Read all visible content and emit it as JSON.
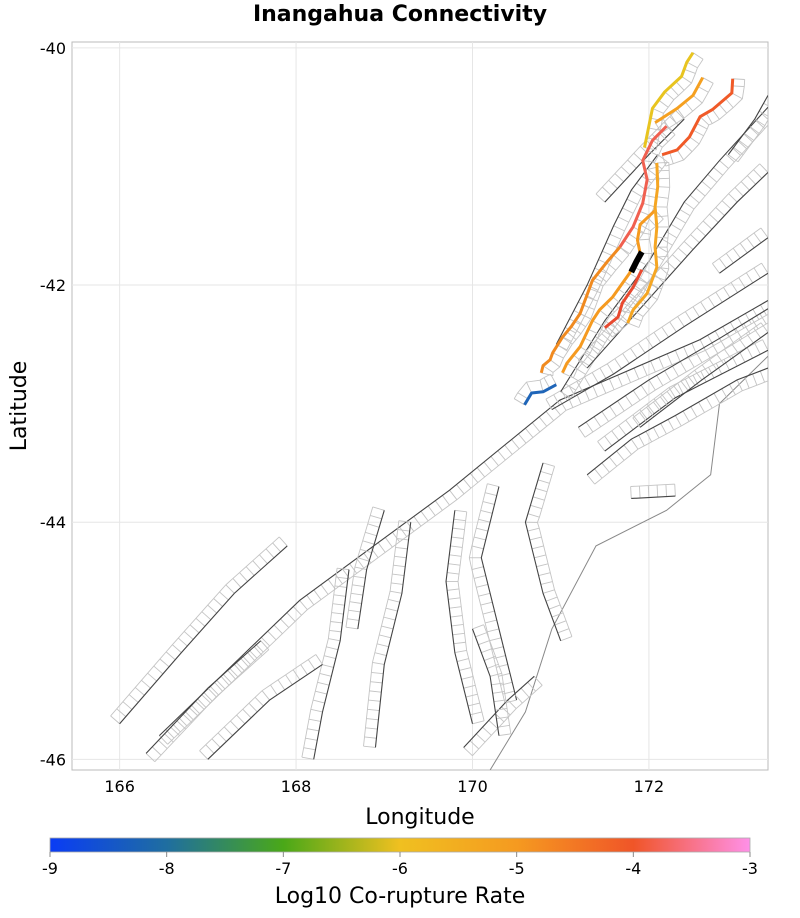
{
  "chart_data": {
    "type": "map",
    "title": "Inangahua Connectivity",
    "xlabel": "Longitude",
    "ylabel": "Latitude",
    "xlim": [
      165.46,
      173.35
    ],
    "ylim": [
      -46.09,
      -39.95
    ],
    "xticks": [
      166,
      168,
      170,
      172
    ],
    "xtick_labels": [
      "166",
      "168",
      "170",
      "172"
    ],
    "yticks": [
      -40,
      -42,
      -44,
      -46
    ],
    "ytick_labels": [
      "-40",
      "-42",
      "-44",
      "-46"
    ],
    "grid": true,
    "colorbar": {
      "label": "Log10 Co-rupture Rate",
      "range": [
        -9,
        -3
      ],
      "ticks": [
        -9,
        -8,
        -7,
        -6,
        -5,
        -4,
        -3
      ],
      "tick_labels": [
        "-9",
        "-8",
        "-7",
        "-6",
        "-5",
        "-4",
        "-3"
      ],
      "colors": [
        "#0a3cf5",
        "#1f6ea0",
        "#4aa818",
        "#f0c020",
        "#f59a20",
        "#f05528",
        "#ff90e8"
      ]
    },
    "source_fault": {
      "name": "Inangahua",
      "color": "#000000",
      "trace": [
        [
          171.92,
          -41.72
        ],
        [
          171.86,
          -41.8
        ],
        [
          171.8,
          -41.89
        ]
      ]
    },
    "colored_faults": [
      {
        "log10_rate": -6.1,
        "color": "#e8c420",
        "trace": [
          [
            172.5,
            -40.04
          ],
          [
            172.43,
            -40.12
          ],
          [
            172.37,
            -40.24
          ],
          [
            172.18,
            -40.37
          ],
          [
            172.04,
            -40.51
          ],
          [
            171.95,
            -40.84
          ]
        ]
      },
      {
        "log10_rate": -5.6,
        "color": "#f5a020",
        "trace": [
          [
            172.61,
            -40.25
          ],
          [
            172.5,
            -40.4
          ],
          [
            172.32,
            -40.51
          ],
          [
            172.07,
            -40.63
          ]
        ]
      },
      {
        "log10_rate": -4.6,
        "color": "#f05a28",
        "trace": [
          [
            172.95,
            -40.26
          ],
          [
            172.94,
            -40.38
          ],
          [
            172.72,
            -40.52
          ],
          [
            172.58,
            -40.58
          ],
          [
            172.46,
            -40.75
          ],
          [
            172.32,
            -40.86
          ],
          [
            172.15,
            -40.9
          ]
        ]
      },
      {
        "log10_rate": -4.2,
        "color": "#f06050",
        "trace": [
          [
            172.2,
            -40.66
          ],
          [
            172.04,
            -40.78
          ],
          [
            171.93,
            -40.95
          ],
          [
            171.98,
            -41.11
          ],
          [
            171.93,
            -41.31
          ],
          [
            171.82,
            -41.51
          ],
          [
            171.67,
            -41.68
          ]
        ]
      },
      {
        "log10_rate": -5.2,
        "color": "#f08a20",
        "trace": [
          [
            171.67,
            -41.68
          ],
          [
            171.52,
            -41.81
          ],
          [
            171.36,
            -41.96
          ],
          [
            171.22,
            -42.24
          ],
          [
            171.12,
            -42.35
          ],
          [
            171.02,
            -42.44
          ],
          [
            170.91,
            -42.57
          ],
          [
            170.88,
            -42.63
          ],
          [
            170.8,
            -42.68
          ],
          [
            170.78,
            -42.74
          ]
        ]
      },
      {
        "log10_rate": -5.4,
        "color": "#f59a20",
        "trace": [
          [
            172.07,
            -41.37
          ],
          [
            171.9,
            -41.49
          ],
          [
            171.87,
            -41.62
          ],
          [
            171.9,
            -41.73
          ],
          [
            171.78,
            -41.9
          ],
          [
            171.59,
            -42.1
          ],
          [
            171.44,
            -42.21
          ],
          [
            171.36,
            -42.3
          ],
          [
            171.22,
            -42.52
          ],
          [
            171.07,
            -42.66
          ],
          [
            171.02,
            -42.74
          ]
        ]
      },
      {
        "log10_rate": -4.5,
        "color": "#e84a30",
        "trace": [
          [
            171.92,
            -41.87
          ],
          [
            171.82,
            -42.02
          ],
          [
            171.7,
            -42.15
          ],
          [
            171.65,
            -42.27
          ],
          [
            171.5,
            -42.36
          ]
        ]
      },
      {
        "log10_rate": -5.6,
        "color": "#f5a623",
        "trace": [
          [
            172.09,
            -40.97
          ],
          [
            172.1,
            -41.17
          ],
          [
            172.07,
            -41.34
          ],
          [
            172.09,
            -41.51
          ],
          [
            172.07,
            -41.68
          ],
          [
            172.09,
            -41.85
          ],
          [
            171.98,
            -42.07
          ],
          [
            171.82,
            -42.21
          ],
          [
            171.76,
            -42.32
          ]
        ]
      },
      {
        "log10_rate": -8.2,
        "color": "#1f65b8",
        "trace": [
          [
            170.59,
            -43.01
          ],
          [
            170.67,
            -42.91
          ],
          [
            170.8,
            -42.9
          ],
          [
            170.95,
            -42.84
          ]
        ]
      }
    ],
    "background_faults": [
      [
        [
          166.45,
          -45.8
        ],
        [
          168.04,
          -44.66
        ],
        [
          169.74,
          -43.73
        ],
        [
          170.99,
          -42.97
        ],
        [
          172.58,
          -42.46
        ],
        [
          173.35,
          -42.13
        ]
      ],
      [
        [
          170.9,
          -43.05
        ],
        [
          171.6,
          -42.75
        ],
        [
          172.4,
          -42.35
        ],
        [
          173.35,
          -41.9
        ]
      ],
      [
        [
          171.2,
          -43.2
        ],
        [
          172.0,
          -42.8
        ],
        [
          172.8,
          -42.45
        ],
        [
          173.35,
          -42.2
        ]
      ],
      [
        [
          171.5,
          -43.4
        ],
        [
          172.3,
          -42.95
        ],
        [
          173.35,
          -42.55
        ]
      ],
      [
        [
          171.0,
          -42.9
        ],
        [
          171.5,
          -42.3
        ],
        [
          172.0,
          -41.8
        ],
        [
          172.4,
          -41.3
        ],
        [
          172.8,
          -40.95
        ],
        [
          173.35,
          -40.5
        ]
      ],
      [
        [
          171.3,
          -42.7
        ],
        [
          171.9,
          -42.2
        ],
        [
          172.5,
          -41.7
        ],
        [
          173.0,
          -41.3
        ],
        [
          173.35,
          -41.05
        ]
      ],
      [
        [
          170.95,
          -42.5
        ],
        [
          171.3,
          -42.0
        ],
        [
          171.6,
          -41.5
        ],
        [
          171.8,
          -41.2
        ],
        [
          172.1,
          -40.9
        ]
      ],
      [
        [
          172.8,
          -41.9
        ],
        [
          173.35,
          -41.6
        ]
      ],
      [
        [
          169.3,
          -44.0
        ],
        [
          169.2,
          -44.6
        ],
        [
          169.0,
          -45.2
        ],
        [
          168.9,
          -45.9
        ]
      ],
      [
        [
          169.8,
          -43.9
        ],
        [
          169.7,
          -44.5
        ],
        [
          169.8,
          -45.1
        ],
        [
          170.0,
          -45.7
        ]
      ],
      [
        [
          170.3,
          -43.7
        ],
        [
          170.1,
          -44.3
        ],
        [
          170.3,
          -44.9
        ],
        [
          170.5,
          -45.5
        ]
      ],
      [
        [
          170.8,
          -43.5
        ],
        [
          170.6,
          -44.0
        ],
        [
          170.8,
          -44.6
        ],
        [
          171.0,
          -45.0
        ]
      ],
      [
        [
          168.6,
          -44.4
        ],
        [
          168.5,
          -45.0
        ],
        [
          168.3,
          -45.6
        ],
        [
          168.2,
          -46.0
        ]
      ],
      [
        [
          166.0,
          -45.7
        ],
        [
          166.7,
          -45.1
        ],
        [
          167.3,
          -44.6
        ],
        [
          167.9,
          -44.2
        ]
      ],
      [
        [
          166.3,
          -45.95
        ],
        [
          167.0,
          -45.4
        ],
        [
          167.6,
          -45.0
        ]
      ],
      [
        [
          167.0,
          -46.0
        ],
        [
          167.7,
          -45.5
        ],
        [
          168.3,
          -45.2
        ]
      ],
      [
        [
          171.3,
          -43.6
        ],
        [
          171.8,
          -43.3
        ],
        [
          172.3,
          -43.1
        ],
        [
          173.0,
          -42.8
        ],
        [
          173.35,
          -42.7
        ]
      ],
      [
        [
          171.8,
          -43.8
        ],
        [
          172.3,
          -43.78
        ]
      ],
      [
        [
          169.9,
          -45.9
        ],
        [
          170.4,
          -45.5
        ],
        [
          170.7,
          -45.3
        ]
      ],
      [
        [
          171.5,
          -41.3
        ],
        [
          172.0,
          -40.9
        ],
        [
          172.4,
          -40.6
        ]
      ],
      [
        [
          169.0,
          -43.9
        ],
        [
          168.8,
          -44.4
        ],
        [
          168.7,
          -44.9
        ]
      ],
      [
        [
          170.0,
          -44.9
        ],
        [
          170.2,
          -45.3
        ],
        [
          170.3,
          -45.8
        ]
      ],
      [
        [
          172.9,
          -40.9
        ],
        [
          173.2,
          -40.6
        ],
        [
          173.35,
          -40.4
        ]
      ],
      [
        [
          171.9,
          -43.2
        ],
        [
          172.6,
          -42.8
        ],
        [
          173.35,
          -42.4
        ]
      ]
    ],
    "coastline": [
      [
        173.35,
        -42.6
      ],
      [
        172.8,
        -43.0
      ],
      [
        172.7,
        -43.6
      ],
      [
        172.2,
        -43.9
      ],
      [
        171.4,
        -44.2
      ],
      [
        170.9,
        -44.9
      ],
      [
        170.6,
        -45.6
      ],
      [
        170.2,
        -46.09
      ]
    ]
  }
}
